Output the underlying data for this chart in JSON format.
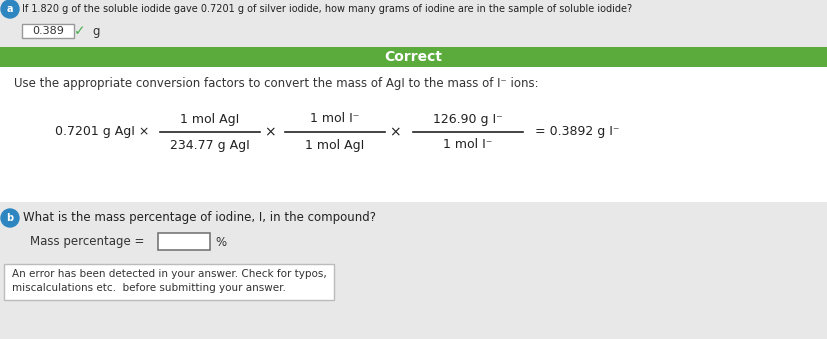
{
  "bg_color": "#e8e8e8",
  "white_bg": "#ffffff",
  "green_banner_color": "#5aaa3c",
  "green_banner_text": "Correct",
  "green_banner_text_color": "#ffffff",
  "part_a_circle_color": "#2e86c1",
  "part_a_circle_text": "a",
  "part_b_circle_color": "#2e86c1",
  "part_b_circle_text": "b",
  "question_text": "If 1.820 g of the soluble iodide gave 0.7201 g of silver iodide, how many grams of iodine are in the sample of soluble iodide?",
  "answer_box_value": "0.389",
  "answer_unit": "g",
  "checkmark_color": "#4caf50",
  "explanation_text": "Use the appropriate conversion factors to convert the mass of AgI to the mass of I⁻ ions:",
  "equation_left": "0.7201 g AgI ×",
  "frac1_num": "1 mol AgI",
  "frac1_den": "234.77 g AgI",
  "frac2_num": "1 mol I⁻",
  "frac2_den": "1 mol AgI",
  "frac3_num": "126.90 g I⁻",
  "frac3_den": "1 mol I⁻",
  "equation_result": "= 0.3892 g I⁻",
  "part_b_question": "What is the mass percentage of iodine, I, in the compound?",
  "mass_pct_label": "Mass percentage =",
  "mass_pct_unit": "%",
  "error_box_line1": "An error has been detected in your answer. Check for typos,",
  "error_box_line2": "miscalculations etc.  before submitting your answer.",
  "error_box_border": "#bbbbbb",
  "times_symbol": "×",
  "fig_width": 8.27,
  "fig_height": 3.39,
  "dpi": 100
}
